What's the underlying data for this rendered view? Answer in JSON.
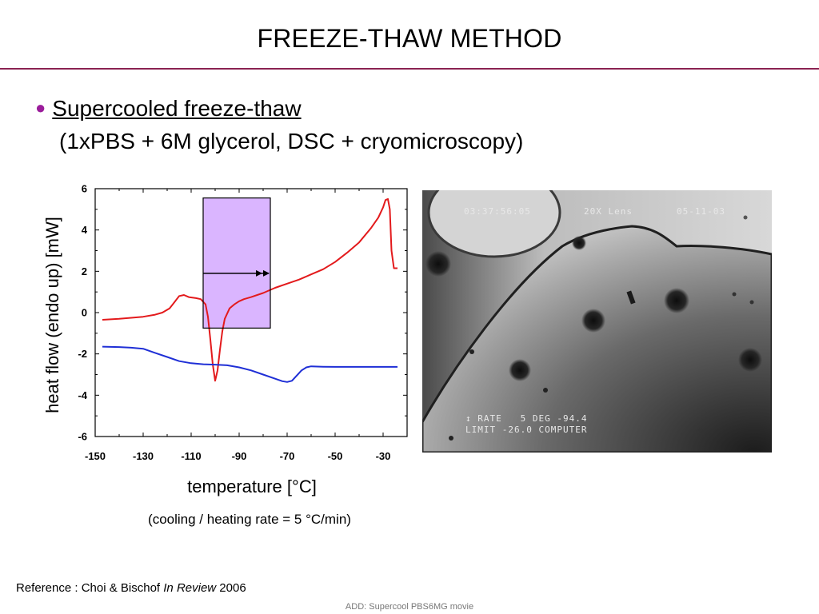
{
  "slide": {
    "title": "FREEZE-THAW METHOD",
    "bullet_heading": "Supercooled freeze-thaw",
    "bullet_subtext": "(1xPBS + 6M glycerol, DSC + cryomicroscopy)",
    "rate_note": "(cooling / heating rate = 5 °C/min)",
    "reference": {
      "prefix": "Reference : Choi & Bischof ",
      "italic": "In Review",
      "suffix": " 2006"
    },
    "footer_note": "ADD: Supercool PBS6MG movie"
  },
  "micrograph": {
    "osd_top_left": "03:37:56:05",
    "osd_top_mid": "20X Lens",
    "osd_top_right": "05-11-03",
    "osd_bottom_line1": "↕ RATE   5 DEG -94.4",
    "osd_bottom_line2": "LIMIT -26.0 COMPUTER"
  },
  "chart_data": {
    "type": "line",
    "title": "",
    "xlabel": "temperature [°C]",
    "ylabel": "heat flow (endo up) [mW]",
    "xlim": [
      -150,
      -20
    ],
    "ylim": [
      -6,
      6
    ],
    "xticks": [
      -150,
      -130,
      -110,
      -90,
      -70,
      -50,
      -30
    ],
    "yticks": [
      -6,
      -4,
      -2,
      0,
      2,
      4,
      6
    ],
    "grid": false,
    "series": [
      {
        "color": "#e31a1c",
        "x": [
          -147,
          -140,
          -135,
          -130,
          -125,
          -122,
          -119,
          -117,
          -115,
          -113,
          -111,
          -108,
          -106,
          -104,
          -103,
          -102,
          -101,
          -100,
          -99,
          -98,
          -97,
          -96,
          -94,
          -92,
          -90,
          -88,
          -85,
          -80,
          -75,
          -70,
          -65,
          -60,
          -55,
          -50,
          -45,
          -40,
          -35,
          -32,
          -30,
          -29,
          -28,
          -27.2,
          -26.5,
          -25.5,
          -24
        ],
        "y": [
          -0.35,
          -0.3,
          -0.25,
          -0.2,
          -0.1,
          0.0,
          0.2,
          0.5,
          0.8,
          0.85,
          0.75,
          0.7,
          0.65,
          0.4,
          -0.2,
          -1.3,
          -2.5,
          -3.3,
          -2.8,
          -1.8,
          -0.9,
          -0.3,
          0.2,
          0.4,
          0.55,
          0.65,
          0.75,
          0.95,
          1.2,
          1.4,
          1.6,
          1.85,
          2.1,
          2.45,
          2.9,
          3.4,
          4.1,
          4.6,
          5.1,
          5.45,
          5.5,
          5.0,
          3.0,
          2.15,
          2.15
        ]
      },
      {
        "color": "#1f2fd6",
        "x": [
          -147,
          -140,
          -135,
          -130,
          -125,
          -120,
          -115,
          -110,
          -105,
          -100,
          -95,
          -90,
          -85,
          -80,
          -75,
          -72,
          -70,
          -68,
          -66,
          -64,
          -62,
          -60,
          -55,
          -50,
          -40,
          -30,
          -24
        ],
        "y": [
          -1.65,
          -1.67,
          -1.7,
          -1.75,
          -1.95,
          -2.15,
          -2.35,
          -2.45,
          -2.5,
          -2.52,
          -2.55,
          -2.65,
          -2.8,
          -3.0,
          -3.2,
          -3.32,
          -3.36,
          -3.3,
          -3.05,
          -2.8,
          -2.65,
          -2.6,
          -2.62,
          -2.63,
          -2.63,
          -2.63,
          -2.63
        ]
      }
    ],
    "annotations": [
      {
        "type": "shaded-region",
        "x_range": [
          -105,
          -77
        ],
        "y_range": [
          -0.75,
          5.55
        ],
        "fill": "#cc99ff",
        "arrow_y": 1.9,
        "arrow_x_from": -105,
        "arrow_x_to": -77
      }
    ]
  }
}
